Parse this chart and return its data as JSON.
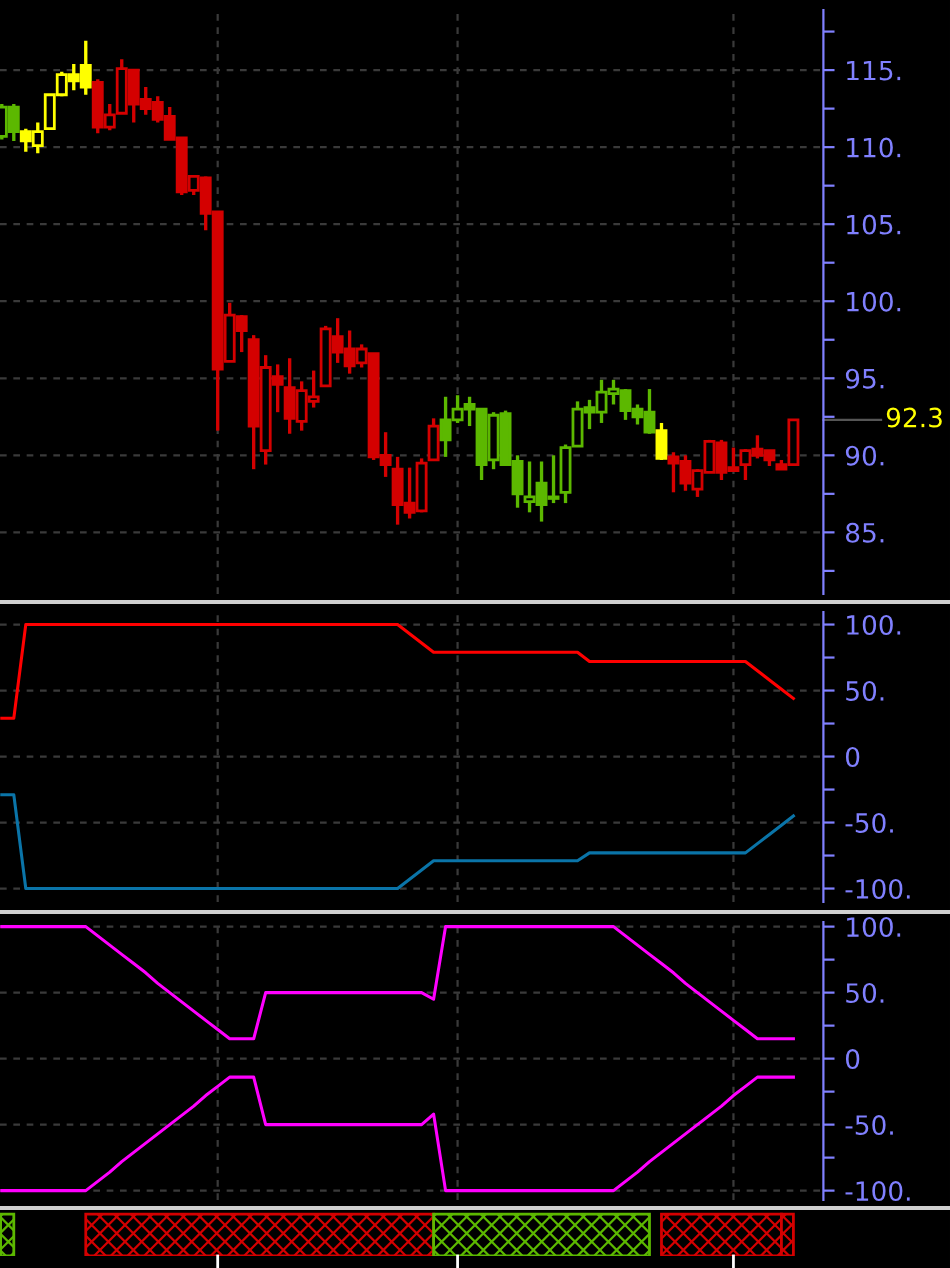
{
  "chart_data": [
    {
      "type": "candlestick",
      "categories": [
        null,
        null,
        null,
        null,
        null,
        null,
        null,
        null,
        null,
        null,
        null,
        null,
        null,
        null,
        null,
        null,
        null,
        null,
        null,
        null,
        null,
        null,
        null,
        null,
        null,
        null,
        null,
        null,
        null,
        null,
        null,
        null,
        null,
        null,
        null,
        null,
        null,
        null,
        null,
        null,
        null,
        null,
        null,
        null,
        null,
        null,
        null,
        null,
        null,
        null,
        null,
        null,
        null,
        null,
        null,
        null,
        null,
        null,
        null,
        null,
        null,
        null,
        null,
        null,
        null,
        null,
        null
      ],
      "ohlc": [
        [
          110.7,
          112.8,
          110.5,
          112.6
        ],
        [
          112.6,
          112.8,
          110.4,
          111.0
        ],
        [
          111.0,
          111.2,
          109.7,
          110.4
        ],
        [
          110.1,
          111.6,
          109.6,
          111.0
        ],
        [
          111.2,
          113.4,
          111.2,
          113.4
        ],
        [
          113.4,
          114.9,
          113.3,
          114.7
        ],
        [
          114.7,
          115.4,
          113.7,
          114.3
        ],
        [
          115.3,
          116.9,
          113.4,
          113.9
        ],
        [
          114.2,
          114.4,
          110.9,
          111.3
        ],
        [
          111.3,
          112.8,
          111.1,
          112.1
        ],
        [
          112.2,
          115.7,
          112.2,
          115.1
        ],
        [
          115.0,
          115.0,
          111.6,
          112.8
        ],
        [
          113.1,
          113.9,
          112.1,
          112.5
        ],
        [
          112.9,
          113.3,
          111.6,
          111.8
        ],
        [
          112.0,
          112.6,
          110.5,
          110.5
        ],
        [
          110.6,
          110.6,
          106.9,
          107.1
        ],
        [
          107.2,
          108.1,
          106.9,
          108.1
        ],
        [
          108.0,
          108.1,
          104.6,
          105.7
        ],
        [
          105.8,
          105.8,
          91.6,
          95.6
        ],
        [
          96.1,
          99.9,
          96.1,
          99.1
        ],
        [
          99.0,
          99.1,
          96.7,
          98.1
        ],
        [
          97.5,
          97.8,
          89.1,
          91.9
        ],
        [
          90.3,
          96.5,
          89.4,
          95.7
        ],
        [
          95.1,
          95.9,
          92.8,
          94.6
        ],
        [
          94.4,
          96.3,
          91.4,
          92.4
        ],
        [
          92.2,
          94.8,
          91.6,
          94.2
        ],
        [
          93.5,
          95.5,
          93.1,
          93.8
        ],
        [
          94.5,
          98.4,
          94.5,
          98.2
        ],
        [
          97.7,
          98.9,
          96.0,
          96.7
        ],
        [
          96.9,
          98.1,
          95.3,
          95.8
        ],
        [
          96.0,
          97.2,
          95.7,
          96.9
        ],
        [
          96.6,
          96.6,
          89.7,
          89.9
        ],
        [
          90.0,
          91.5,
          88.6,
          89.4
        ],
        [
          89.1,
          89.9,
          85.5,
          86.8
        ],
        [
          86.9,
          89.2,
          85.9,
          86.3
        ],
        [
          86.4,
          89.8,
          86.3,
          89.5
        ],
        [
          89.7,
          92.4,
          89.7,
          91.9
        ],
        [
          92.3,
          93.8,
          89.9,
          91.0
        ],
        [
          92.3,
          93.9,
          92.1,
          93.0
        ],
        [
          93.3,
          93.8,
          91.9,
          93.0
        ],
        [
          93.0,
          93.0,
          88.4,
          89.4
        ],
        [
          89.7,
          92.8,
          89.1,
          92.6
        ],
        [
          92.7,
          92.9,
          89.4,
          89.4
        ],
        [
          89.6,
          90.0,
          86.6,
          87.5
        ],
        [
          87.0,
          89.6,
          86.3,
          87.3
        ],
        [
          88.2,
          89.6,
          85.7,
          86.8
        ],
        [
          87.2,
          90.0,
          86.9,
          87.3
        ],
        [
          87.6,
          90.7,
          86.9,
          90.5
        ],
        [
          90.6,
          93.5,
          90.6,
          93.0
        ],
        [
          93.1,
          93.6,
          91.7,
          92.8
        ],
        [
          92.8,
          94.9,
          92.1,
          94.1
        ],
        [
          94.0,
          94.9,
          93.3,
          94.3
        ],
        [
          94.2,
          94.3,
          92.3,
          92.9
        ],
        [
          93.0,
          93.3,
          92.0,
          92.5
        ],
        [
          92.8,
          94.3,
          91.4,
          91.5
        ],
        [
          91.6,
          92.1,
          89.7,
          89.8
        ],
        [
          89.9,
          90.2,
          87.6,
          89.5
        ],
        [
          89.6,
          90.0,
          87.7,
          88.2
        ],
        [
          87.8,
          89.1,
          87.3,
          89.0
        ],
        [
          88.9,
          91.0,
          88.9,
          90.9
        ],
        [
          90.8,
          91.0,
          88.4,
          88.9
        ],
        [
          89.2,
          90.5,
          89.0,
          89.0
        ],
        [
          89.4,
          90.4,
          88.4,
          90.3
        ],
        [
          90.4,
          91.3,
          89.8,
          90.0
        ],
        [
          90.3,
          90.3,
          89.3,
          89.7
        ],
        [
          89.4,
          89.7,
          89.1,
          89.1
        ],
        [
          89.4,
          92.3,
          89.4,
          92.3
        ]
      ],
      "colors": [
        "#5cb800",
        "#5cb800",
        "#ffff00",
        "#ffff00",
        "#ffff00",
        "#ffff00",
        "#ffff00",
        "#ffff00",
        "#d40000",
        "#d40000",
        "#d40000",
        "#d40000",
        "#d40000",
        "#d40000",
        "#d40000",
        "#d40000",
        "#d40000",
        "#d40000",
        "#d40000",
        "#d40000",
        "#d40000",
        "#d40000",
        "#d40000",
        "#d40000",
        "#d40000",
        "#d40000",
        "#d40000",
        "#d40000",
        "#d40000",
        "#d40000",
        "#d40000",
        "#d40000",
        "#d40000",
        "#d40000",
        "#d40000",
        "#d40000",
        "#d40000",
        "#5cb800",
        "#5cb800",
        "#5cb800",
        "#5cb800",
        "#5cb800",
        "#5cb800",
        "#5cb800",
        "#5cb800",
        "#5cb800",
        "#5cb800",
        "#5cb800",
        "#5cb800",
        "#5cb800",
        "#5cb800",
        "#5cb800",
        "#5cb800",
        "#5cb800",
        "#5cb800",
        "#ffff00",
        "#d40000",
        "#d40000",
        "#d40000",
        "#d40000",
        "#d40000",
        "#d40000",
        "#d40000",
        "#d40000",
        "#d40000",
        "#d40000",
        "#d40000"
      ],
      "ylim": [
        81,
        118.9
      ],
      "yticks": [
        {
          "value": 82.5,
          "label": null
        },
        {
          "value": 85,
          "label": "85."
        },
        {
          "value": 87.5,
          "label": null
        },
        {
          "value": 90,
          "label": "90."
        },
        {
          "value": 92.5,
          "label": null
        },
        {
          "value": 95,
          "label": "95."
        },
        {
          "value": 97.5,
          "label": null
        },
        {
          "value": 100,
          "label": "100."
        },
        {
          "value": 102.5,
          "label": null
        },
        {
          "value": 105,
          "label": "105."
        },
        {
          "value": 107.5,
          "label": null
        },
        {
          "value": 110,
          "label": "110."
        },
        {
          "value": 112.5,
          "label": null
        },
        {
          "value": 115,
          "label": "115."
        },
        {
          "value": 117.5,
          "label": null
        }
      ],
      "grid": true,
      "tick_labels": "y",
      "annotations": [
        "92.3"
      ]
    },
    {
      "type": "line",
      "tick_labels": "y",
      "grid": true,
      "ylim": [
        -110.2,
        109.5
      ],
      "categories": [
        null,
        null,
        null,
        null,
        null,
        null,
        null,
        null,
        null,
        null,
        null,
        null,
        null,
        null,
        null,
        null,
        null,
        null,
        null,
        null,
        null,
        null,
        null,
        null,
        null,
        null,
        null,
        null,
        null,
        null,
        null,
        null,
        null,
        null,
        null,
        null,
        null,
        null,
        null,
        null,
        null,
        null,
        null,
        null,
        null,
        null,
        null,
        null,
        null,
        null,
        null,
        null,
        null,
        null,
        null,
        null,
        null,
        null,
        null,
        null,
        null,
        null,
        null,
        null,
        null,
        null,
        null
      ],
      "yticks": [
        {
          "value": -100,
          "label": "-100."
        },
        {
          "value": -75,
          "label": null
        },
        {
          "value": -50,
          "label": "-50."
        },
        {
          "value": -25,
          "label": null
        },
        {
          "value": 0,
          "label": "0"
        },
        {
          "value": 25,
          "label": null
        },
        {
          "value": 50,
          "label": "50."
        },
        {
          "value": 75,
          "label": null
        },
        {
          "value": 100,
          "label": "100."
        }
      ],
      "series": [
        {
          "color": "#ff0000",
          "values": [
            29,
            29,
            100,
            100,
            100,
            100,
            100,
            100,
            100,
            100,
            100,
            100,
            100,
            100,
            100,
            100,
            100,
            100,
            100,
            100,
            100,
            100,
            100,
            100,
            100,
            100,
            100,
            100,
            100,
            100,
            100,
            100,
            100,
            100,
            93,
            86,
            79,
            79,
            79,
            79,
            79,
            79,
            79,
            79,
            79,
            79,
            79,
            79,
            79,
            72,
            72,
            72,
            72,
            72,
            72,
            72,
            72,
            72,
            72,
            72,
            72,
            72,
            72,
            65,
            58,
            51,
            44
          ]
        },
        {
          "color": "#0a74a8",
          "values": [
            -29,
            -29,
            -100,
            -100,
            -100,
            -100,
            -100,
            -100,
            -100,
            -100,
            -100,
            -100,
            -100,
            -100,
            -100,
            -100,
            -100,
            -100,
            -100,
            -100,
            -100,
            -100,
            -100,
            -100,
            -100,
            -100,
            -100,
            -100,
            -100,
            -100,
            -100,
            -100,
            -100,
            -100,
            -93,
            -86,
            -79,
            -79,
            -79,
            -79,
            -79,
            -79,
            -79,
            -79,
            -79,
            -79,
            -79,
            -79,
            -79,
            -73,
            -73,
            -73,
            -73,
            -73,
            -73,
            -73,
            -73,
            -73,
            -73,
            -73,
            -73,
            -73,
            -73,
            -66,
            -59,
            -52,
            -45
          ]
        }
      ]
    },
    {
      "type": "line",
      "tick_labels": "y",
      "grid": true,
      "ylim": [
        -107.1,
        103.5
      ],
      "categories": [
        null,
        null,
        null,
        null,
        null,
        null,
        null,
        null,
        null,
        null,
        null,
        null,
        null,
        null,
        null,
        null,
        null,
        null,
        null,
        null,
        null,
        null,
        null,
        null,
        null,
        null,
        null,
        null,
        null,
        null,
        null,
        null,
        null,
        null,
        null,
        null,
        null,
        null,
        null,
        null,
        null,
        null,
        null,
        null,
        null,
        null,
        null,
        null,
        null,
        null,
        null,
        null,
        null,
        null,
        null,
        null,
        null,
        null,
        null,
        null,
        null,
        null,
        null,
        null,
        null,
        null,
        null
      ],
      "yticks": [
        {
          "value": -100,
          "label": "-100."
        },
        {
          "value": -75,
          "label": null
        },
        {
          "value": -50,
          "label": "-50."
        },
        {
          "value": -25,
          "label": null
        },
        {
          "value": 0,
          "label": "0"
        },
        {
          "value": 25,
          "label": null
        },
        {
          "value": 50,
          "label": "50."
        },
        {
          "value": 75,
          "label": null
        },
        {
          "value": 100,
          "label": "100."
        }
      ],
      "series": [
        {
          "color": "#ff00ff",
          "values": [
            100,
            100,
            100,
            100,
            100,
            100,
            100,
            100,
            93,
            86,
            79,
            72,
            65,
            57,
            50,
            43,
            36,
            29,
            22,
            15,
            15,
            15,
            50,
            50,
            50,
            50,
            50,
            50,
            50,
            50,
            50,
            50,
            50,
            50,
            50,
            50,
            45,
            100,
            100,
            100,
            100,
            100,
            100,
            100,
            100,
            100,
            100,
            100,
            100,
            100,
            100,
            100,
            93,
            86,
            79,
            72,
            65,
            57,
            50,
            43,
            36,
            29,
            22,
            15,
            15,
            15,
            15
          ]
        },
        {
          "color": "#ff00ff",
          "values": [
            -100,
            -100,
            -100,
            -100,
            -100,
            -100,
            -100,
            -100,
            -93,
            -86,
            -78,
            -71,
            -64,
            -57,
            -50,
            -43,
            -36,
            -28,
            -21,
            -14,
            -14,
            -14,
            -50,
            -50,
            -50,
            -50,
            -50,
            -50,
            -50,
            -50,
            -50,
            -50,
            -50,
            -50,
            -50,
            -50,
            -42,
            -100,
            -100,
            -100,
            -100,
            -100,
            -100,
            -100,
            -100,
            -100,
            -100,
            -100,
            -100,
            -100,
            -100,
            -100,
            -93,
            -86,
            -78,
            -71,
            -64,
            -57,
            -50,
            -43,
            -36,
            -28,
            -21,
            -14,
            -14,
            -14,
            -14
          ]
        }
      ]
    }
  ]
}
